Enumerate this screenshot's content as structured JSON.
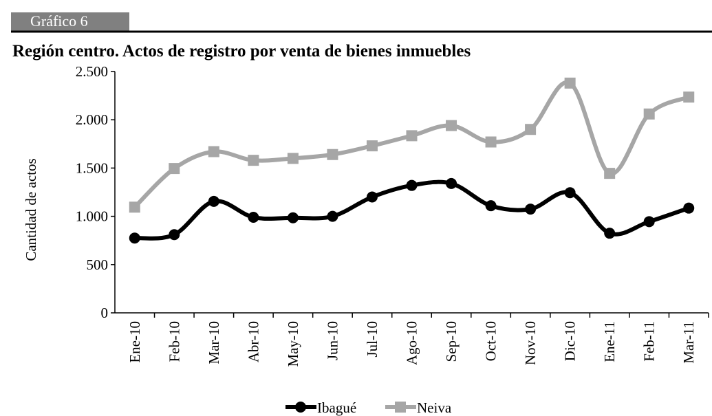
{
  "header": "Gráfico 6",
  "chart_data": {
    "type": "line",
    "title": "Región centro. Actos de registro por venta de bienes inmuebles",
    "y_label": "Cantidad de actos",
    "categories": [
      "Ene-10",
      "Feb-10",
      "Mar-10",
      "Abr-10",
      "May-10",
      "Jun-10",
      "Jul-10",
      "Ago-10",
      "Sep-10",
      "Oct-10",
      "Nov-10",
      "Dic-10",
      "Ene-11",
      "Feb-11",
      "Mar-11"
    ],
    "series": [
      {
        "name": "Ibagué",
        "color": "#000000",
        "marker": "circle",
        "values": [
          775,
          810,
          1155,
          990,
          985,
          1000,
          1200,
          1320,
          1340,
          1110,
          1075,
          1245,
          825,
          945,
          1085
        ]
      },
      {
        "name": "Neiva",
        "color": "#a6a6a6",
        "marker": "square",
        "values": [
          1095,
          1495,
          1670,
          1580,
          1600,
          1640,
          1730,
          1835,
          1940,
          1770,
          1900,
          2380,
          1445,
          2060,
          2235
        ]
      }
    ],
    "ylim": [
      0,
      2500
    ],
    "yticks": [
      0,
      500,
      {
        "value": 1000,
        "label": "1.000"
      },
      {
        "value": 1500,
        "label": "1.500"
      },
      {
        "value": 2000,
        "label": "2.000"
      },
      {
        "value": 2500,
        "label": "2.500"
      }
    ],
    "smooth": true,
    "legend": "bottom"
  }
}
